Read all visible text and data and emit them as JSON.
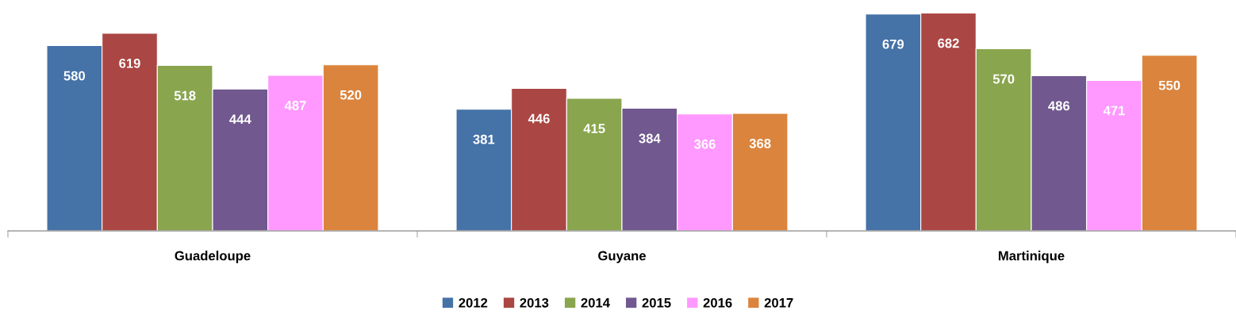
{
  "chart_data": {
    "type": "bar",
    "categories": [
      "Guadeloupe",
      "Guyane",
      "Martinique"
    ],
    "series": [
      {
        "name": "2012",
        "color": "#4572a7",
        "values": [
          580,
          381,
          679
        ]
      },
      {
        "name": "2013",
        "color": "#aa4643",
        "values": [
          619,
          446,
          682
        ]
      },
      {
        "name": "2014",
        "color": "#89a54e",
        "values": [
          518,
          415,
          570
        ]
      },
      {
        "name": "2015",
        "color": "#71588f",
        "values": [
          444,
          384,
          486
        ]
      },
      {
        "name": "2016",
        "color": "#ff99ff",
        "values": [
          487,
          366,
          471
        ]
      },
      {
        "name": "2017",
        "color": "#db843d",
        "values": [
          520,
          368,
          550
        ]
      }
    ],
    "data_labels": true,
    "tick_labels": "x",
    "grid": false,
    "legend": "bottom"
  }
}
